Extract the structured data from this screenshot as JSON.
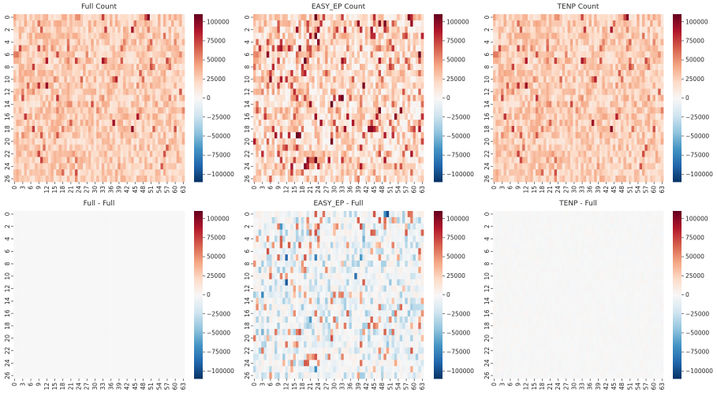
{
  "chart_data": [
    {
      "type": "heatmap",
      "title": "Full Count",
      "rows": 27,
      "cols": 64,
      "y_tick_labels": [
        "0",
        "2",
        "4",
        "6",
        "8",
        "10",
        "12",
        "14",
        "16",
        "18",
        "20",
        "22",
        "24",
        "26"
      ],
      "x_tick_labels": [
        "0",
        "3",
        "6",
        "9",
        "12",
        "15",
        "18",
        "21",
        "24",
        "27",
        "30",
        "33",
        "36",
        "39",
        "42",
        "45",
        "48",
        "51",
        "54",
        "57",
        "60",
        "63"
      ],
      "colorbar": {
        "vmin": -110000,
        "vmax": 110000,
        "ticks": [
          "100000",
          "75000",
          "50000",
          "25000",
          "0",
          "−25000",
          "−50000",
          "−75000",
          "−100000"
        ],
        "colormap": "RdBu_r"
      },
      "value_summary": "mostly 10000-50000, occasional spikes near 100000"
    },
    {
      "type": "heatmap",
      "title": "EASY_EP Count",
      "rows": 27,
      "cols": 64,
      "y_tick_labels": [
        "0",
        "2",
        "4",
        "6",
        "8",
        "10",
        "12",
        "14",
        "16",
        "18",
        "20",
        "22",
        "24",
        "26"
      ],
      "x_tick_labels": [
        "0",
        "3",
        "6",
        "9",
        "12",
        "15",
        "18",
        "21",
        "24",
        "27",
        "30",
        "33",
        "36",
        "39",
        "42",
        "45",
        "48",
        "51",
        "54",
        "57",
        "60",
        "63"
      ],
      "colorbar": {
        "vmin": -110000,
        "vmax": 110000,
        "ticks": [
          "100000",
          "75000",
          "50000",
          "25000",
          "0",
          "−25000",
          "−50000",
          "−75000",
          "−100000"
        ],
        "colormap": "RdBu_r"
      },
      "value_summary": "0-110000 with many near-zero cells"
    },
    {
      "type": "heatmap",
      "title": "TENP Count",
      "rows": 27,
      "cols": 64,
      "y_tick_labels": [
        "0",
        "2",
        "4",
        "6",
        "8",
        "10",
        "12",
        "14",
        "16",
        "18",
        "20",
        "22",
        "24",
        "26"
      ],
      "x_tick_labels": [
        "0",
        "3",
        "6",
        "9",
        "12",
        "15",
        "18",
        "21",
        "24",
        "27",
        "30",
        "33",
        "36",
        "39",
        "42",
        "45",
        "48",
        "51",
        "54",
        "57",
        "60",
        "63"
      ],
      "colorbar": {
        "vmin": -110000,
        "vmax": 110000,
        "ticks": [
          "100000",
          "75000",
          "50000",
          "25000",
          "0",
          "−25000",
          "−50000",
          "−75000",
          "−100000"
        ],
        "colormap": "RdBu_r"
      },
      "value_summary": "nearly identical to Full Count"
    },
    {
      "type": "heatmap",
      "title": "Full - Full",
      "rows": 27,
      "cols": 64,
      "y_tick_labels": [
        "0",
        "2",
        "4",
        "6",
        "8",
        "10",
        "12",
        "14",
        "16",
        "18",
        "20",
        "22",
        "24",
        "26"
      ],
      "x_tick_labels": [
        "0",
        "3",
        "6",
        "9",
        "12",
        "15",
        "18",
        "21",
        "24",
        "27",
        "30",
        "33",
        "36",
        "39",
        "42",
        "45",
        "48",
        "51",
        "54",
        "57",
        "60",
        "63"
      ],
      "colorbar": {
        "vmin": -110000,
        "vmax": 110000,
        "ticks": [
          "100000",
          "75000",
          "50000",
          "25000",
          "0",
          "−25000",
          "−50000",
          "−75000",
          "−100000"
        ],
        "colormap": "RdBu_r"
      },
      "value_summary": "all cells 0"
    },
    {
      "type": "heatmap",
      "title": "EASY_EP - Full",
      "rows": 27,
      "cols": 64,
      "y_tick_labels": [
        "0",
        "2",
        "4",
        "6",
        "8",
        "10",
        "12",
        "14",
        "16",
        "18",
        "20",
        "22",
        "24",
        "26"
      ],
      "x_tick_labels": [
        "0",
        "3",
        "6",
        "9",
        "12",
        "15",
        "18",
        "21",
        "24",
        "27",
        "30",
        "33",
        "36",
        "39",
        "42",
        "45",
        "48",
        "51",
        "54",
        "57",
        "60",
        "63"
      ],
      "colorbar": {
        "vmin": -110000,
        "vmax": 110000,
        "ticks": [
          "100000",
          "75000",
          "50000",
          "25000",
          "0",
          "−25000",
          "−50000",
          "−75000",
          "−100000"
        ],
        "colormap": "RdBu_r"
      },
      "value_summary": "mostly near 0, scattered cells from about -100000 to 100000"
    },
    {
      "type": "heatmap",
      "title": "TENP - Full",
      "rows": 27,
      "cols": 64,
      "y_tick_labels": [
        "0",
        "2",
        "4",
        "6",
        "8",
        "10",
        "12",
        "14",
        "16",
        "18",
        "20",
        "22",
        "24",
        "26"
      ],
      "x_tick_labels": [
        "0",
        "3",
        "6",
        "9",
        "12",
        "15",
        "18",
        "21",
        "24",
        "27",
        "30",
        "33",
        "36",
        "39",
        "42",
        "45",
        "48",
        "51",
        "54",
        "57",
        "60",
        "63"
      ],
      "colorbar": {
        "vmin": -110000,
        "vmax": 110000,
        "ticks": [
          "100000",
          "75000",
          "50000",
          "25000",
          "0",
          "−25000",
          "−50000",
          "−75000",
          "−100000"
        ],
        "colormap": "RdBu_r"
      },
      "value_summary": "very small differences around 0 (within a few thousand)"
    }
  ]
}
